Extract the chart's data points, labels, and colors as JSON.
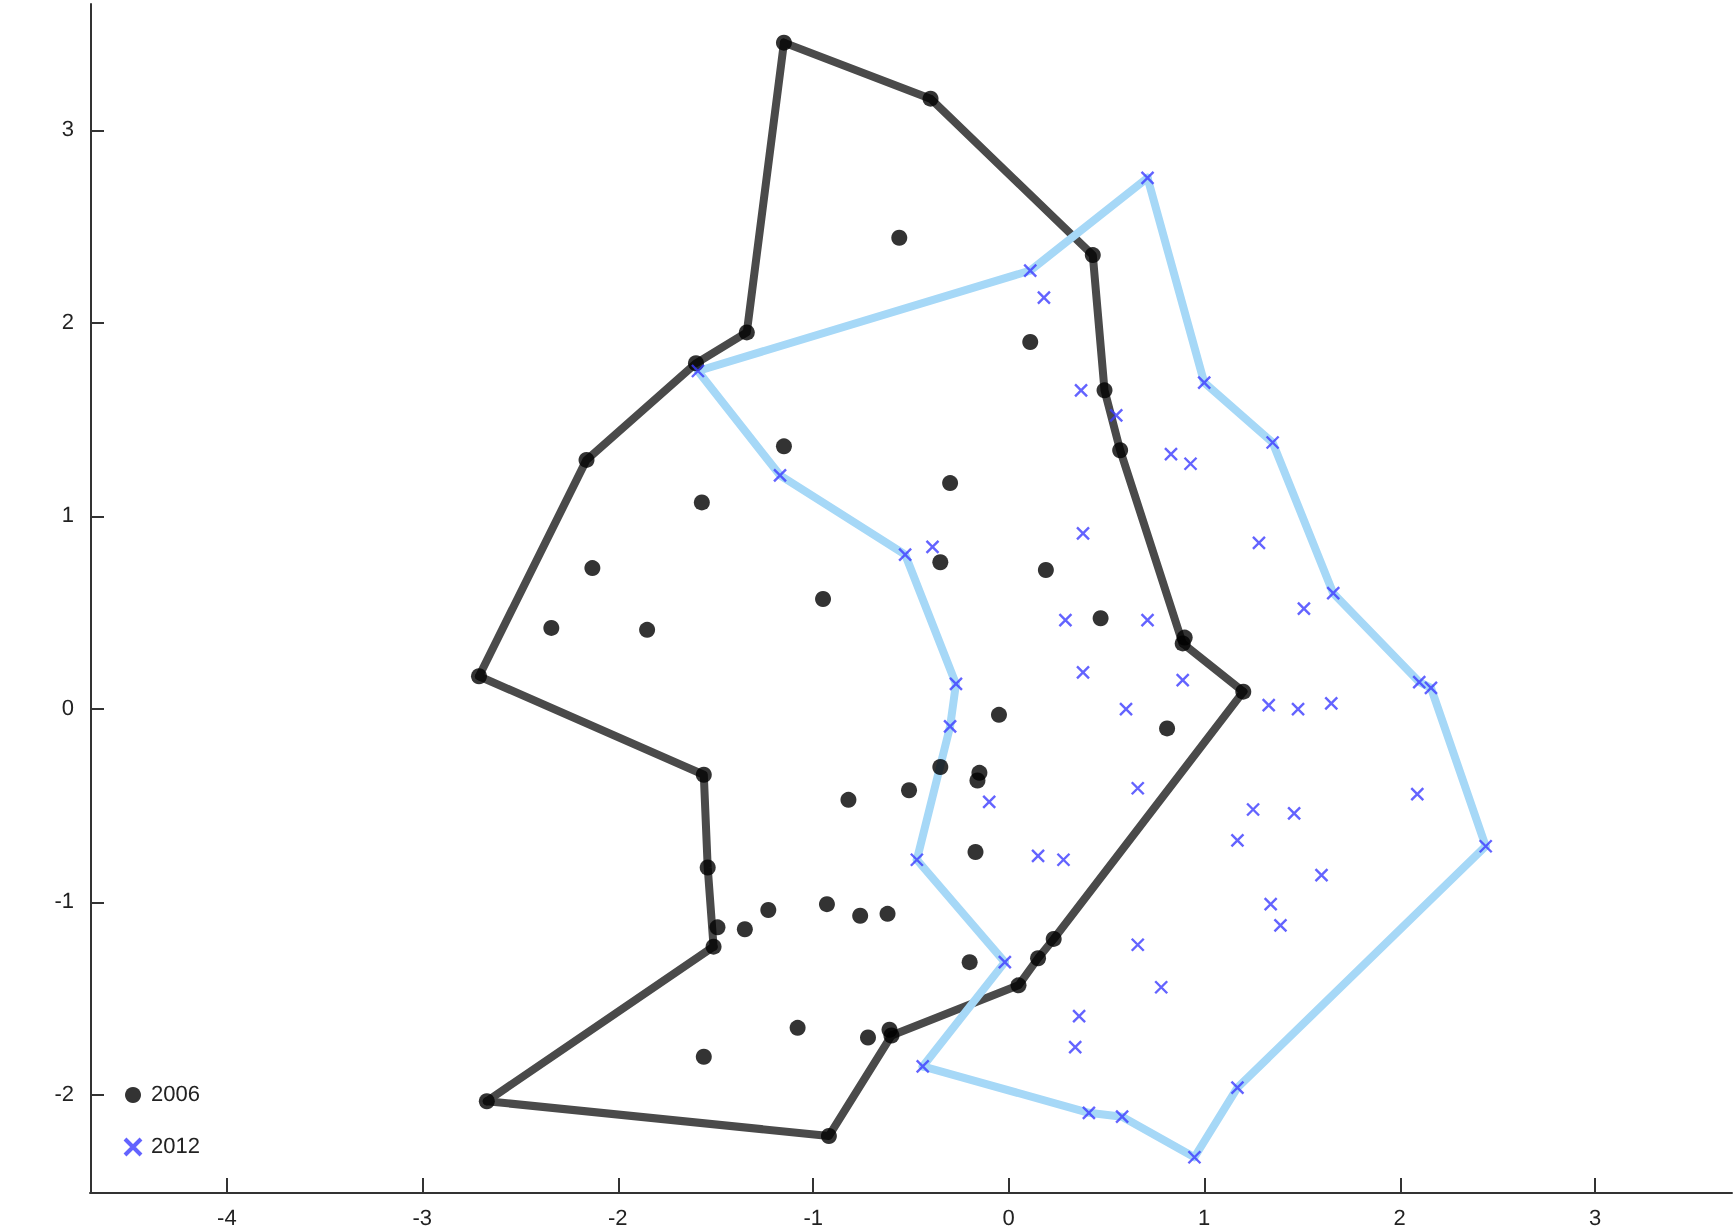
{
  "chart_data": {
    "type": "scatter",
    "xlim": [
      -4.7,
      3.7
    ],
    "ylim": [
      -2.5,
      3.65
    ],
    "xticks": [
      -4,
      -3,
      -2,
      -1,
      0,
      1,
      2,
      3
    ],
    "yticks": [
      -2,
      -1,
      0,
      1,
      2,
      3
    ],
    "grid": false,
    "legend": "bottom left",
    "series": [
      {
        "type": "line",
        "color": "#4a4a4a",
        "marker": "none",
        "x": [
          -1.15,
          -0.4,
          0.43,
          0.49,
          0.57,
          0.89
        ],
        "values": [
          3.45,
          3.16,
          2.35,
          1.65,
          1.34,
          0.34
        ]
      },
      {
        "type": "line",
        "color": "#4a4a4a",
        "marker": "none",
        "x": [
          0.89,
          1.2
        ],
        "values": [
          0.34,
          0.09
        ]
      },
      {
        "type": "line",
        "color": "#4a4a4a",
        "marker": "none",
        "x": [
          -0.6,
          0.05,
          0.15,
          0.23,
          1.2
        ],
        "values": [
          -1.69,
          -1.43,
          -1.29,
          -1.19,
          0.09
        ]
      },
      {
        "type": "line",
        "color": "#4a4a4a",
        "marker": "none",
        "x": [
          -2.67,
          -0.92,
          -0.6
        ],
        "values": [
          -2.03,
          -2.21,
          -1.69
        ]
      },
      {
        "type": "line",
        "color": "#4a4a4a",
        "marker": "none",
        "x": [
          -2.67,
          -1.51
        ],
        "values": [
          -2.03,
          -1.23
        ]
      },
      {
        "type": "line",
        "color": "#4a4a4a",
        "marker": "none",
        "x": [
          -2.71,
          -1.56,
          -1.54,
          -1.51
        ],
        "values": [
          0.17,
          -0.34,
          -0.82,
          -1.23
        ]
      },
      {
        "type": "line",
        "color": "#4a4a4a",
        "marker": "none",
        "x": [
          -2.71,
          -2.16,
          -1.6,
          -1.34,
          -1.15
        ],
        "values": [
          0.17,
          1.29,
          1.79,
          1.95,
          3.45
        ]
      },
      {
        "type": "line",
        "color": "#a6d8f7",
        "marker": "none",
        "x": [
          0.71,
          1.0,
          1.35,
          1.66,
          2.1,
          2.16,
          2.44
        ],
        "values": [
          2.75,
          1.69,
          1.38,
          0.6,
          0.14,
          0.11,
          -0.71
        ]
      },
      {
        "type": "line",
        "color": "#a6d8f7",
        "marker": "none",
        "x": [
          -0.44,
          0.41,
          0.58,
          0.95,
          1.17,
          2.44
        ],
        "values": [
          -1.85,
          -2.09,
          -2.11,
          -2.32,
          -1.96,
          -0.71
        ]
      },
      {
        "type": "line",
        "color": "#a6d8f7",
        "marker": "none",
        "x": [
          -0.44,
          -0.02
        ],
        "values": [
          -1.85,
          -1.31
        ]
      },
      {
        "type": "line",
        "color": "#a6d8f7",
        "marker": "none",
        "x": [
          -0.47,
          -0.02
        ],
        "values": [
          -0.78,
          -1.31
        ]
      },
      {
        "type": "line",
        "color": "#a6d8f7",
        "marker": "none",
        "x": [
          -0.47,
          -0.3,
          -0.27
        ],
        "values": [
          -0.78,
          -0.09,
          0.13
        ]
      },
      {
        "type": "line",
        "color": "#a6d8f7",
        "marker": "none",
        "x": [
          -1.59,
          -1.17,
          -0.53,
          -0.27
        ],
        "values": [
          1.75,
          1.21,
          0.8,
          0.13
        ]
      },
      {
        "type": "line",
        "color": "#a6d8f7",
        "marker": "none",
        "x": [
          -1.59,
          0.11,
          0.71
        ],
        "values": [
          1.75,
          2.27,
          2.75
        ]
      },
      {
        "name": "2006",
        "color": "#000000",
        "marker": "circle",
        "x": [
          -1.15,
          -0.4,
          0.43,
          0.49,
          0.57,
          0.9,
          0.89,
          1.2,
          0.23,
          0.15,
          0.05,
          -0.61,
          -0.6,
          -0.92,
          -2.67,
          -1.51,
          -1.49,
          -1.54,
          -1.56,
          -2.71,
          -2.16,
          -1.6,
          -1.34,
          -0.56,
          0.11,
          -1.15,
          -0.3,
          -1.57,
          -0.35,
          -2.13,
          -0.95,
          0.19,
          0.47,
          -0.05,
          -2.34,
          -1.85,
          -0.35,
          -0.15,
          -0.16,
          -0.51,
          -0.82,
          -0.17,
          -1.23,
          -1.35,
          -0.93,
          -0.76,
          -0.62,
          -0.2,
          -1.08,
          -0.72,
          -1.56,
          0.81
        ],
        "values": [
          3.45,
          3.16,
          2.35,
          1.65,
          1.34,
          0.37,
          0.34,
          0.09,
          -1.19,
          -1.29,
          -1.43,
          -1.66,
          -1.69,
          -2.21,
          -2.03,
          -1.23,
          -1.13,
          -0.82,
          -0.34,
          0.17,
          1.29,
          1.79,
          1.95,
          2.44,
          1.9,
          1.36,
          1.17,
          1.07,
          0.76,
          0.73,
          0.57,
          0.72,
          0.47,
          -0.03,
          0.42,
          0.41,
          -0.3,
          -0.33,
          -0.37,
          -0.42,
          -0.47,
          -0.74,
          -1.04,
          -1.14,
          -1.01,
          -1.07,
          -1.06,
          -1.31,
          -1.65,
          -1.7,
          -1.8,
          -0.1
        ]
      },
      {
        "name": "2012",
        "color": "#3c3cff",
        "marker": "cross",
        "x": [
          0.71,
          1.0,
          1.35,
          1.66,
          2.1,
          2.16,
          2.44,
          1.17,
          0.95,
          0.58,
          0.41,
          -0.44,
          -0.02,
          -0.47,
          -0.3,
          -0.27,
          -0.53,
          -1.17,
          -1.59,
          0.11,
          0.18,
          0.37,
          0.55,
          0.83,
          0.93,
          0.38,
          1.28,
          -0.39,
          1.51,
          0.29,
          0.71,
          0.38,
          0.89,
          0.6,
          1.33,
          1.48,
          1.65,
          -0.1,
          0.66,
          1.25,
          1.46,
          1.17,
          2.09,
          0.15,
          0.28,
          1.6,
          1.34,
          1.39,
          0.66,
          0.78,
          0.36,
          0.34
        ],
        "values": [
          2.75,
          1.69,
          1.38,
          0.6,
          0.14,
          0.11,
          -0.71,
          -1.96,
          -2.32,
          -2.11,
          -2.09,
          -1.85,
          -1.31,
          -0.78,
          -0.09,
          0.13,
          0.8,
          1.21,
          1.75,
          2.27,
          2.13,
          1.65,
          1.52,
          1.32,
          1.27,
          0.91,
          0.86,
          0.84,
          0.52,
          0.46,
          0.46,
          0.19,
          0.15,
          0.0,
          0.02,
          0.0,
          0.03,
          -0.48,
          -0.41,
          -0.52,
          -0.54,
          -0.68,
          -0.44,
          -0.76,
          -0.78,
          -0.86,
          -1.01,
          -1.12,
          -1.22,
          -1.44,
          -1.59,
          -1.75
        ]
      }
    ]
  }
}
